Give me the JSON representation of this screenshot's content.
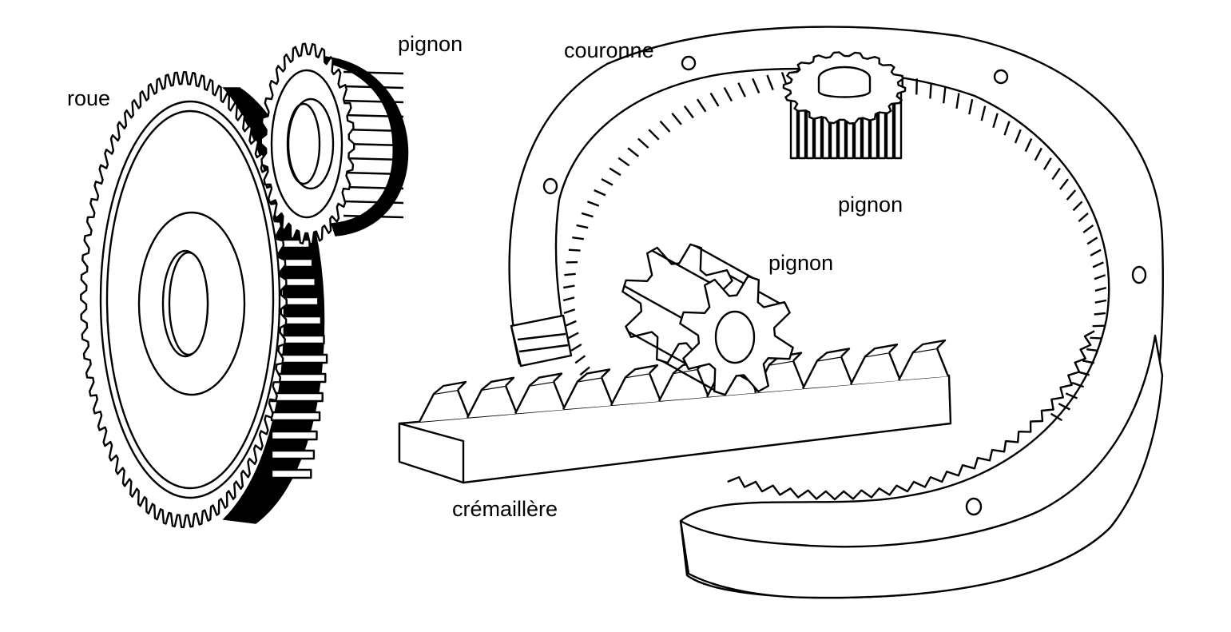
{
  "labels": {
    "roue": "roue",
    "pignon_top_left": "pignon",
    "couronne": "couronne",
    "pignon_couronne": "pignon",
    "pignon_cremaillere": "pignon",
    "cremaillere": "crémaillère"
  },
  "colors": {
    "ink": "#000000",
    "paper": "#ffffff"
  }
}
